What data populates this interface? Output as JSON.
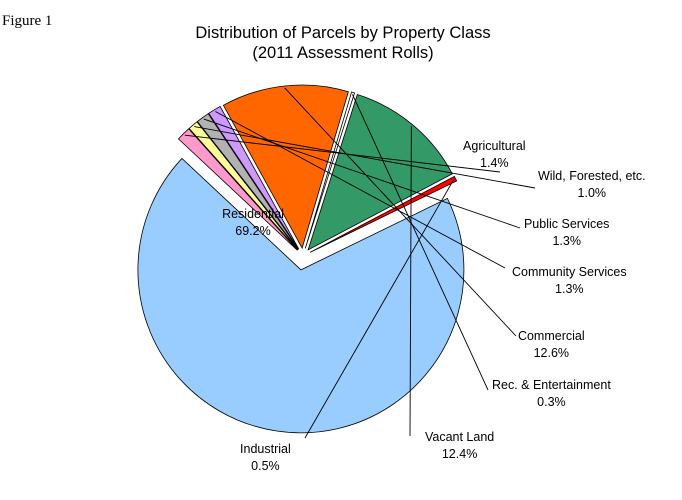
{
  "figure_label": "Figure 1",
  "chart_data": {
    "type": "pie",
    "title": "Distribution of Parcels by Property Class",
    "subtitle": "(2011 Assessment Rolls)",
    "unit": "%",
    "slices": [
      {
        "name": "Residential",
        "value": 69.2,
        "label": "69.2%",
        "color": "#99CCFF"
      },
      {
        "name": "Agricultural",
        "value": 1.4,
        "label": "1.4%",
        "color": "#FF99CC"
      },
      {
        "name": "Wild, Forested, etc.",
        "value": 1.0,
        "label": "1.0%",
        "color": "#FFFF99"
      },
      {
        "name": "Public Services",
        "value": 1.3,
        "label": "1.3%",
        "color": "#B2B2B2"
      },
      {
        "name": "Community Services",
        "value": 1.3,
        "label": "1.3%",
        "color": "#CC99FF"
      },
      {
        "name": "Commercial",
        "value": 12.6,
        "label": "12.6%",
        "color": "#FF6600"
      },
      {
        "name": "Rec. & Entertainment",
        "value": 0.3,
        "label": "0.3%",
        "color": "#FFFFFF"
      },
      {
        "name": "Vacant Land",
        "value": 12.4,
        "label": "12.4%",
        "color": "#339966"
      },
      {
        "name": "Industrial",
        "value": 0.5,
        "label": "0.5%",
        "color": "#FF0000"
      }
    ]
  }
}
